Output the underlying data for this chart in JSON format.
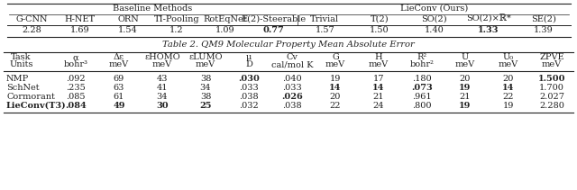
{
  "table1": {
    "baseline_header": "Baseline Methods",
    "lieconv_header": "LieConv (Ours)",
    "columns": [
      "G-CNN",
      "H-NET",
      "ORN",
      "TI-Pooling",
      "RotEqNet",
      "E(2)-Steerable",
      "Trivial",
      "T(2)",
      "SO(2)",
      "SO(2)×ℝ*",
      "SE(2)"
    ],
    "values": [
      "2.28",
      "1.69",
      "1.54",
      "1.2",
      "1.09",
      "0.77",
      "1.57",
      "1.50",
      "1.40",
      "1.33",
      "1.39"
    ],
    "bold_indices": [
      5,
      9
    ]
  },
  "table2_title": "Table 2. QM9 Molecular Property Mean Absolute Error",
  "table2": {
    "col_headers_row1": [
      "Task",
      "α",
      "Δε",
      "εHOMO",
      "εLUMO",
      "μ",
      "Cv",
      "G",
      "H",
      "R²",
      "U",
      "U₀",
      "ZPVE"
    ],
    "col_headers_row2": [
      "Units",
      "bohr³",
      "meV",
      "meV",
      "meV",
      "D",
      "cal/mol K",
      "meV",
      "meV",
      "bohr²",
      "meV",
      "meV",
      "meV"
    ],
    "rows": [
      {
        "name": "NMP",
        "values": [
          ".092",
          "69",
          "43",
          "38",
          ".030",
          ".040",
          "19",
          "17",
          ".180",
          "20",
          "20",
          "1.500"
        ],
        "bold_name": false,
        "bold_vals": [
          false,
          false,
          false,
          false,
          true,
          false,
          false,
          false,
          false,
          false,
          false,
          true
        ]
      },
      {
        "name": "SchNet",
        "values": [
          ".235",
          "63",
          "41",
          "34",
          ".033",
          ".033",
          "14",
          "14",
          ".073",
          "19",
          "14",
          "1.700"
        ],
        "bold_name": false,
        "bold_vals": [
          false,
          false,
          false,
          false,
          false,
          false,
          true,
          true,
          true,
          true,
          true,
          false
        ]
      },
      {
        "name": "Cormorant",
        "values": [
          ".085",
          "61",
          "34",
          "38",
          ".038",
          ".026",
          "20",
          "21",
          ".961",
          "21",
          "22",
          "2.027"
        ],
        "bold_name": false,
        "bold_vals": [
          false,
          false,
          false,
          false,
          false,
          true,
          false,
          false,
          false,
          false,
          false,
          false
        ]
      },
      {
        "name": "LieConv(T3)",
        "values": [
          ".084",
          "49",
          "30",
          "25",
          ".032",
          ".038",
          "22",
          "24",
          ".800",
          "19",
          "19",
          "2.280"
        ],
        "bold_name": true,
        "bold_vals": [
          true,
          true,
          true,
          true,
          false,
          false,
          false,
          false,
          false,
          true,
          false,
          false
        ]
      }
    ]
  },
  "bg_color": "#ffffff",
  "line_color": "#222222",
  "fs": 7.0
}
